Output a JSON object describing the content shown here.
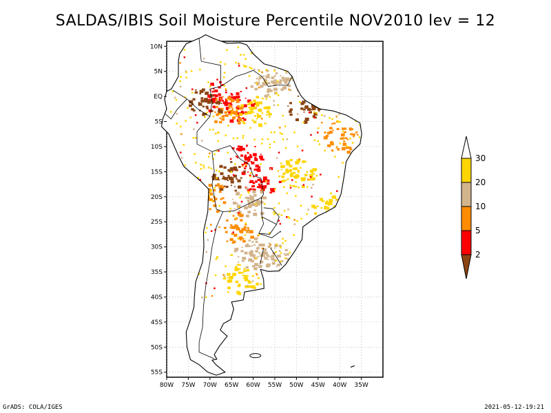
{
  "title": "SALDAS/IBIS Soil Moisture Percentile NOV2010 lev = 12",
  "footer_left": "GrADS: COLA/IGES",
  "footer_right": "2021-05-12-19:21",
  "map": {
    "lon_range": [
      -80,
      -30
    ],
    "lat_range": [
      -56,
      11
    ],
    "lat_ticks": [
      {
        "value": 10,
        "label": "10N"
      },
      {
        "value": 5,
        "label": "5N"
      },
      {
        "value": 0,
        "label": "EQ"
      },
      {
        "value": -5,
        "label": "5S"
      },
      {
        "value": -10,
        "label": "10S"
      },
      {
        "value": -15,
        "label": "15S"
      },
      {
        "value": -20,
        "label": "20S"
      },
      {
        "value": -25,
        "label": "25S"
      },
      {
        "value": -30,
        "label": "30S"
      },
      {
        "value": -35,
        "label": "35S"
      },
      {
        "value": -40,
        "label": "40S"
      },
      {
        "value": -45,
        "label": "45S"
      },
      {
        "value": -50,
        "label": "50S"
      },
      {
        "value": -55,
        "label": "55S"
      }
    ],
    "lon_ticks": [
      {
        "value": -80,
        "label": "80W"
      },
      {
        "value": -75,
        "label": "75W"
      },
      {
        "value": -70,
        "label": "70W"
      },
      {
        "value": -65,
        "label": "65W"
      },
      {
        "value": -60,
        "label": "60W"
      },
      {
        "value": -55,
        "label": "55W"
      },
      {
        "value": -50,
        "label": "50W"
      },
      {
        "value": -45,
        "label": "45W"
      },
      {
        "value": -40,
        "label": "40W"
      },
      {
        "value": -35,
        "label": "35W"
      }
    ]
  },
  "legend": {
    "bins": [
      {
        "label": "",
        "color": "#ffffff"
      },
      {
        "label": "30",
        "color": "#ffd500"
      },
      {
        "label": "20",
        "color": "#d2b48c"
      },
      {
        "label": "10",
        "color": "#ff8c00"
      },
      {
        "label": "5",
        "color": "#ff0000"
      },
      {
        "label": "2",
        "color": "#8b4513"
      }
    ]
  },
  "dry_regions": [
    {
      "lon": -57,
      "lat": 3,
      "color": "#d2b48c"
    },
    {
      "lon": -52,
      "lat": 4,
      "color": "#d2b48c"
    },
    {
      "lon": -68,
      "lat": 0,
      "color": "#ff0000"
    },
    {
      "lon": -64,
      "lat": -2,
      "color": "#ff0000"
    },
    {
      "lon": -66,
      "lat": -3,
      "color": "#ff8c00"
    },
    {
      "lon": -71,
      "lat": -1,
      "color": "#8b4513"
    },
    {
      "lon": -48,
      "lat": -2,
      "color": "#8b4513"
    },
    {
      "lon": -60,
      "lat": -3,
      "color": "#ffd500"
    },
    {
      "lon": -62,
      "lat": -12,
      "color": "#ff0000"
    },
    {
      "lon": -58,
      "lat": -17,
      "color": "#ff0000"
    },
    {
      "lon": -66,
      "lat": -16,
      "color": "#8b4513"
    },
    {
      "lon": -61,
      "lat": -21,
      "color": "#d2b48c"
    },
    {
      "lon": -64,
      "lat": -26,
      "color": "#ff8c00"
    },
    {
      "lon": -61,
      "lat": -31,
      "color": "#d2b48c"
    },
    {
      "lon": -56,
      "lat": -32,
      "color": "#d2b48c"
    },
    {
      "lon": -63,
      "lat": -36,
      "color": "#ffd500"
    },
    {
      "lon": -40,
      "lat": -8,
      "color": "#ff8c00"
    },
    {
      "lon": -43,
      "lat": -22,
      "color": "#ffd500"
    },
    {
      "lon": -70,
      "lat": -20,
      "color": "#ff8c00"
    },
    {
      "lon": -50,
      "lat": -15,
      "color": "#ffd500"
    }
  ]
}
